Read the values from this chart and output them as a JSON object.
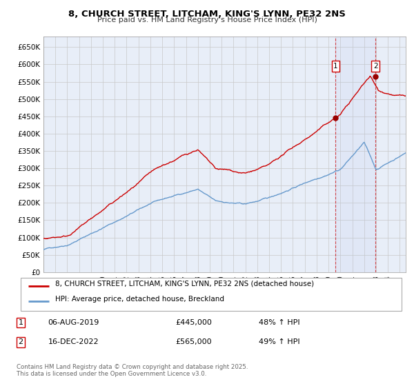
{
  "title": "8, CHURCH STREET, LITCHAM, KING'S LYNN, PE32 2NS",
  "subtitle": "Price paid vs. HM Land Registry's House Price Index (HPI)",
  "ylabel_ticks": [
    "£0",
    "£50K",
    "£100K",
    "£150K",
    "£200K",
    "£250K",
    "£300K",
    "£350K",
    "£400K",
    "£450K",
    "£500K",
    "£550K",
    "£600K",
    "£650K"
  ],
  "ylim": [
    0,
    680000
  ],
  "xlim_start": 1995,
  "xlim_end": 2025.5,
  "background_color": "#ffffff",
  "plot_bg_color": "#e8eef8",
  "grid_color": "#c8c8c8",
  "hpi_line_color": "#6699cc",
  "price_line_color": "#cc0000",
  "ann1_x": 2019.6,
  "ann1_y": 445000,
  "ann2_x": 2022.96,
  "ann2_y": 565000,
  "vline1_x": 2019.6,
  "vline2_x": 2022.96,
  "legend_line1": "8, CHURCH STREET, LITCHAM, KING'S LYNN, PE32 2NS (detached house)",
  "legend_line2": "HPI: Average price, detached house, Breckland",
  "footnote": "Contains HM Land Registry data © Crown copyright and database right 2025.\nThis data is licensed under the Open Government Licence v3.0.",
  "table_row1": [
    "1",
    "06-AUG-2019",
    "£445,000",
    "48% ↑ HPI"
  ],
  "table_row2": [
    "2",
    "16-DEC-2022",
    "£565,000",
    "49% ↑ HPI"
  ]
}
